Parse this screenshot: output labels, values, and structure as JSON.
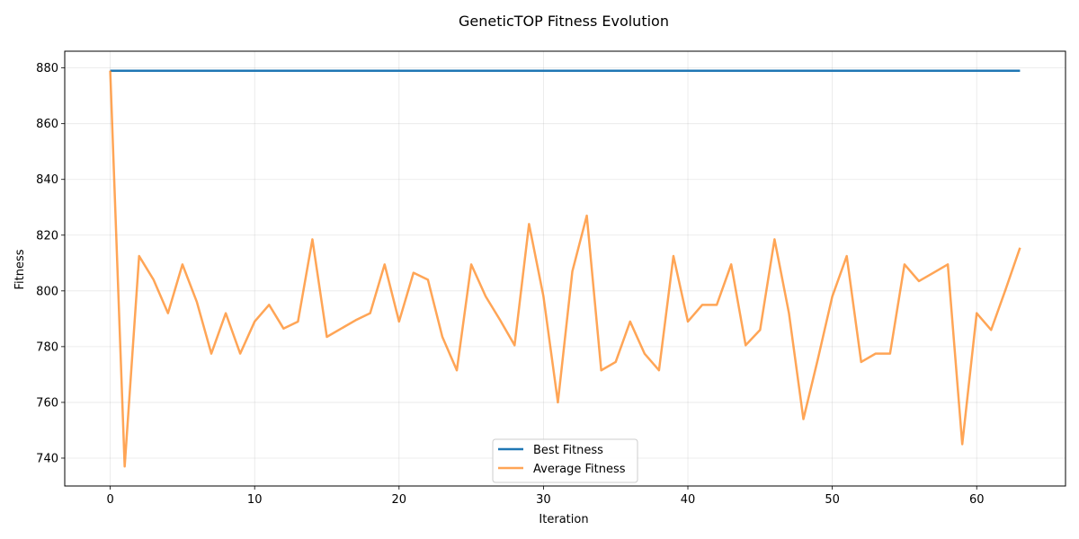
{
  "chart_data": {
    "type": "line",
    "title": "GeneticTOP Fitness Evolution",
    "xlabel": "Iteration",
    "ylabel": "Fitness",
    "xlim": [
      -3.15,
      66.15
    ],
    "ylim": [
      730,
      886
    ],
    "x_ticks": [
      0,
      10,
      20,
      30,
      40,
      50,
      60
    ],
    "y_ticks": [
      740,
      760,
      780,
      800,
      820,
      840,
      860,
      880
    ],
    "grid": true,
    "legend_position": "bottom-center",
    "x": [
      0,
      1,
      2,
      3,
      4,
      5,
      6,
      7,
      8,
      9,
      10,
      11,
      12,
      13,
      14,
      15,
      16,
      17,
      18,
      19,
      20,
      21,
      22,
      23,
      24,
      25,
      26,
      27,
      28,
      29,
      30,
      31,
      32,
      33,
      34,
      35,
      36,
      37,
      38,
      39,
      40,
      41,
      42,
      43,
      44,
      45,
      46,
      47,
      48,
      49,
      50,
      51,
      52,
      53,
      54,
      55,
      56,
      57,
      58,
      59,
      60,
      61,
      62,
      63
    ],
    "series": [
      {
        "name": "Best Fitness",
        "color": "#1f77b4",
        "values": [
          879,
          879,
          879,
          879,
          879,
          879,
          879,
          879,
          879,
          879,
          879,
          879,
          879,
          879,
          879,
          879,
          879,
          879,
          879,
          879,
          879,
          879,
          879,
          879,
          879,
          879,
          879,
          879,
          879,
          879,
          879,
          879,
          879,
          879,
          879,
          879,
          879,
          879,
          879,
          879,
          879,
          879,
          879,
          879,
          879,
          879,
          879,
          879,
          879,
          879,
          879,
          879,
          879,
          879,
          879,
          879,
          879,
          879,
          879,
          879,
          879,
          879,
          879,
          879
        ]
      },
      {
        "name": "Average Fitness",
        "color": "#ff7f0e",
        "opacity": 0.7,
        "values": [
          879,
          737,
          812.5,
          804,
          792,
          809.5,
          796,
          777.5,
          792,
          777.5,
          789,
          795,
          786.5,
          789,
          818.5,
          783.5,
          786.5,
          789.5,
          792,
          809.5,
          789,
          806.5,
          804,
          783.5,
          771.5,
          809.5,
          798,
          789.5,
          780.5,
          824,
          798,
          760,
          807,
          827,
          771.5,
          774.5,
          789,
          777.5,
          771.5,
          812.5,
          789,
          795,
          795,
          809.5,
          780.5,
          786,
          818.5,
          792,
          754,
          775.5,
          798,
          812.5,
          774.5,
          777.5,
          777.5,
          809.5,
          803.5,
          806.5,
          809.5,
          745,
          792,
          786,
          800.5,
          815.5
        ]
      }
    ]
  }
}
